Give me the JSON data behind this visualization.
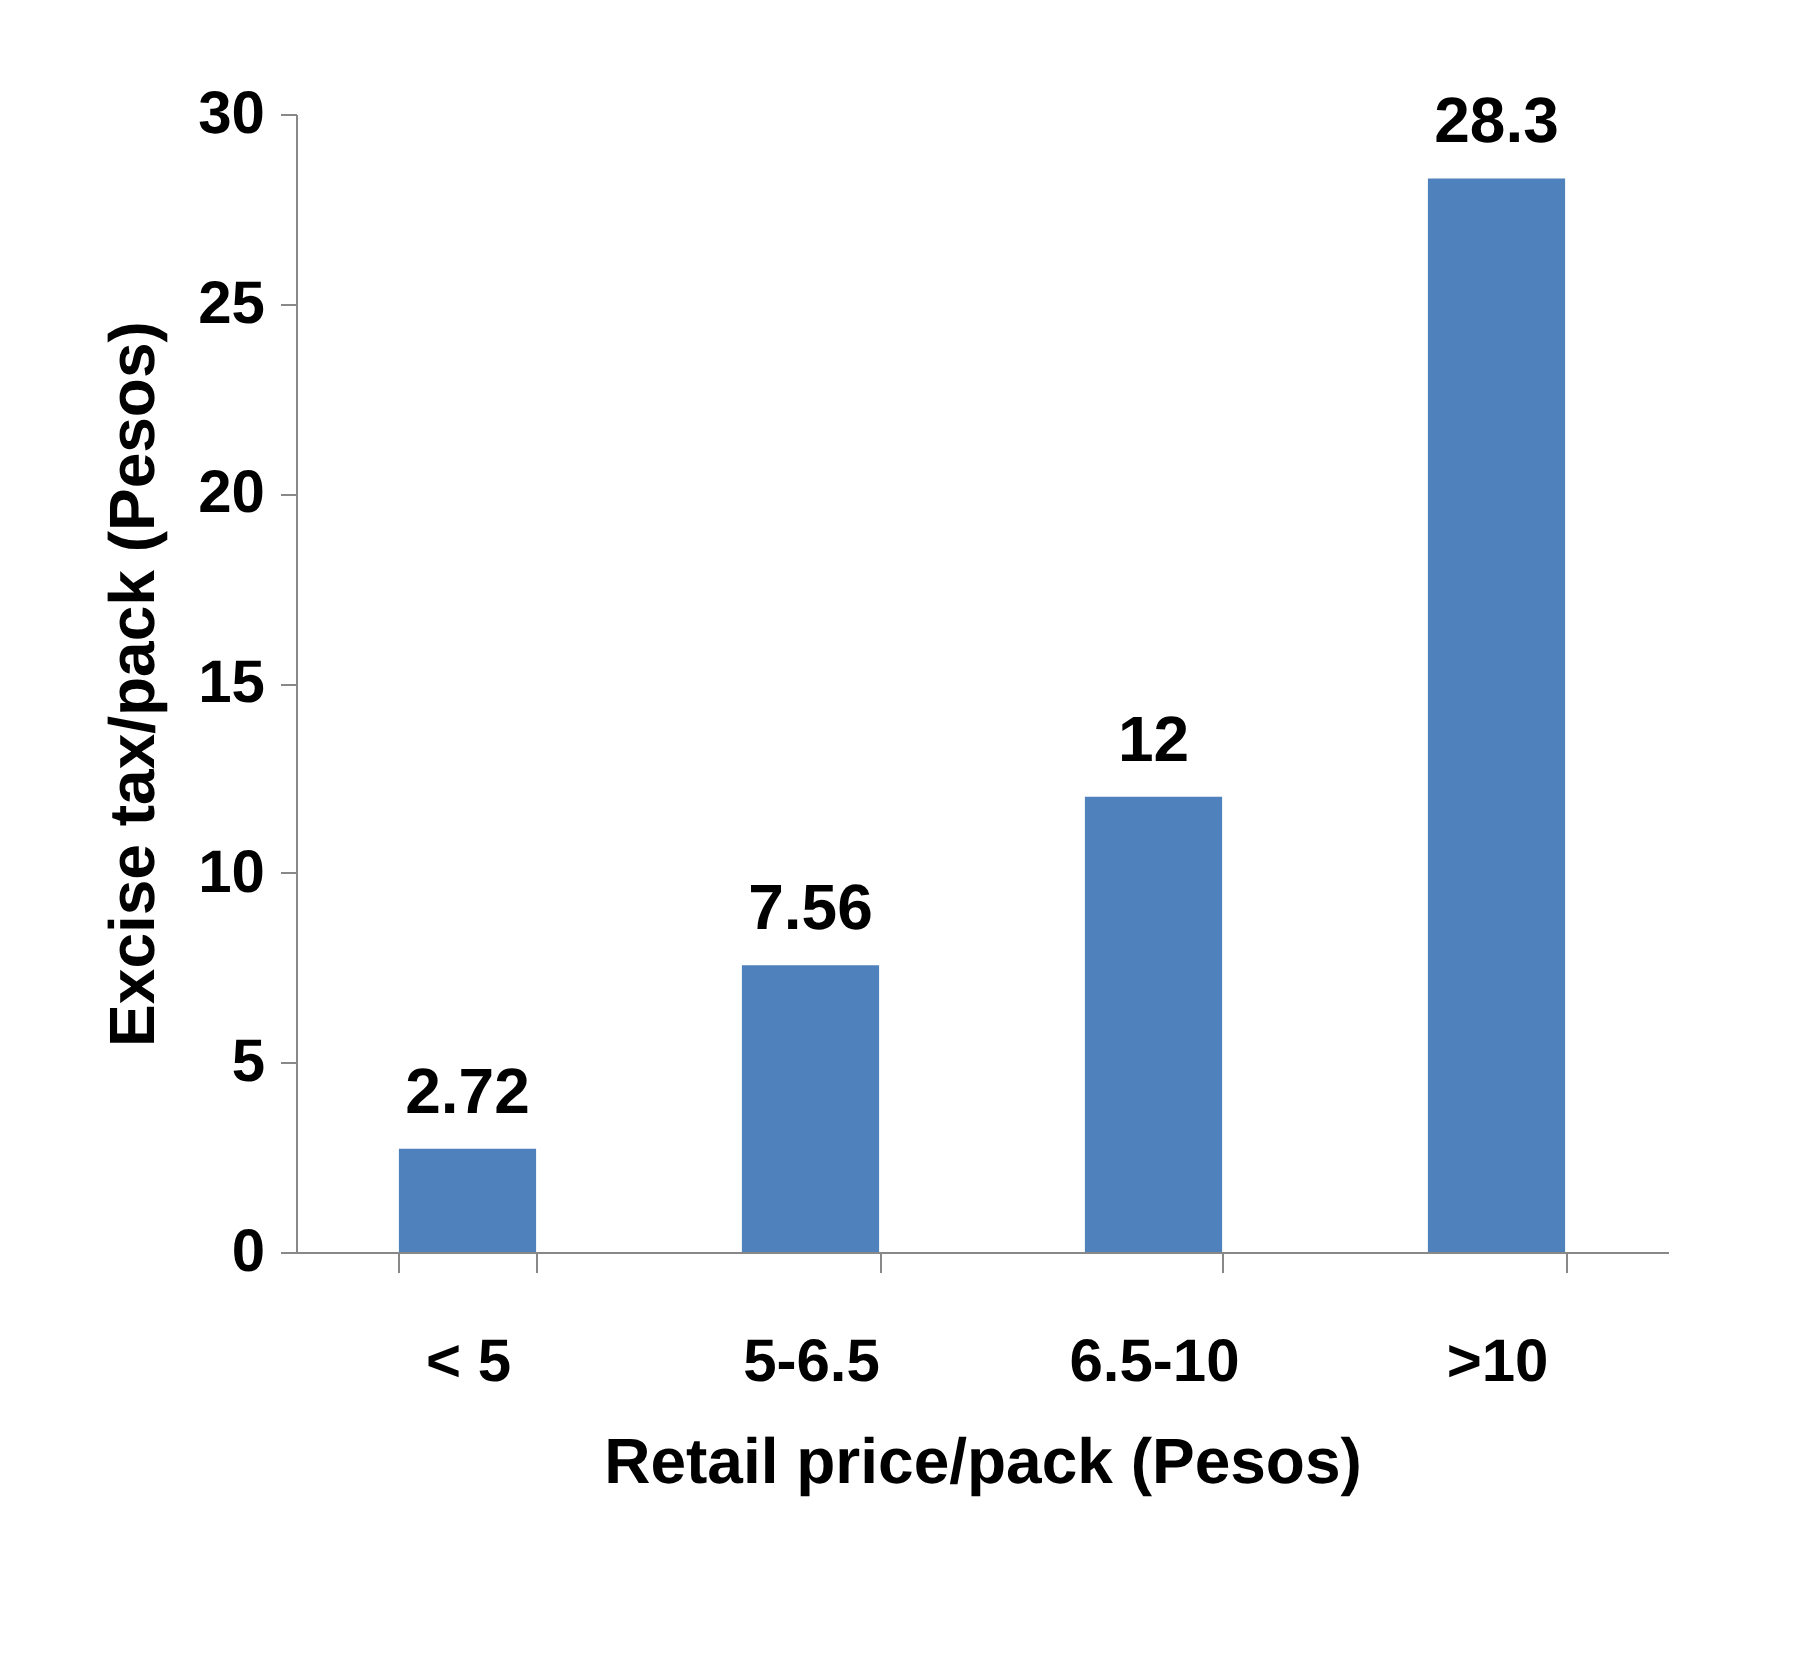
{
  "chart_data": {
    "type": "bar",
    "xlabel": "Retail price/pack (Pesos)",
    "ylabel": "Excise tax/pack (Pesos)",
    "categories": [
      "< 5",
      "5-6.5",
      "6.5-10",
      ">10"
    ],
    "values": [
      2.72,
      7.56,
      12,
      28.3
    ],
    "color": "#4f81bd",
    "ylim": [
      0,
      30
    ],
    "yticks": [
      0,
      5,
      10,
      15,
      20,
      25,
      30
    ],
    "grid": false,
    "data_labels": true
  }
}
